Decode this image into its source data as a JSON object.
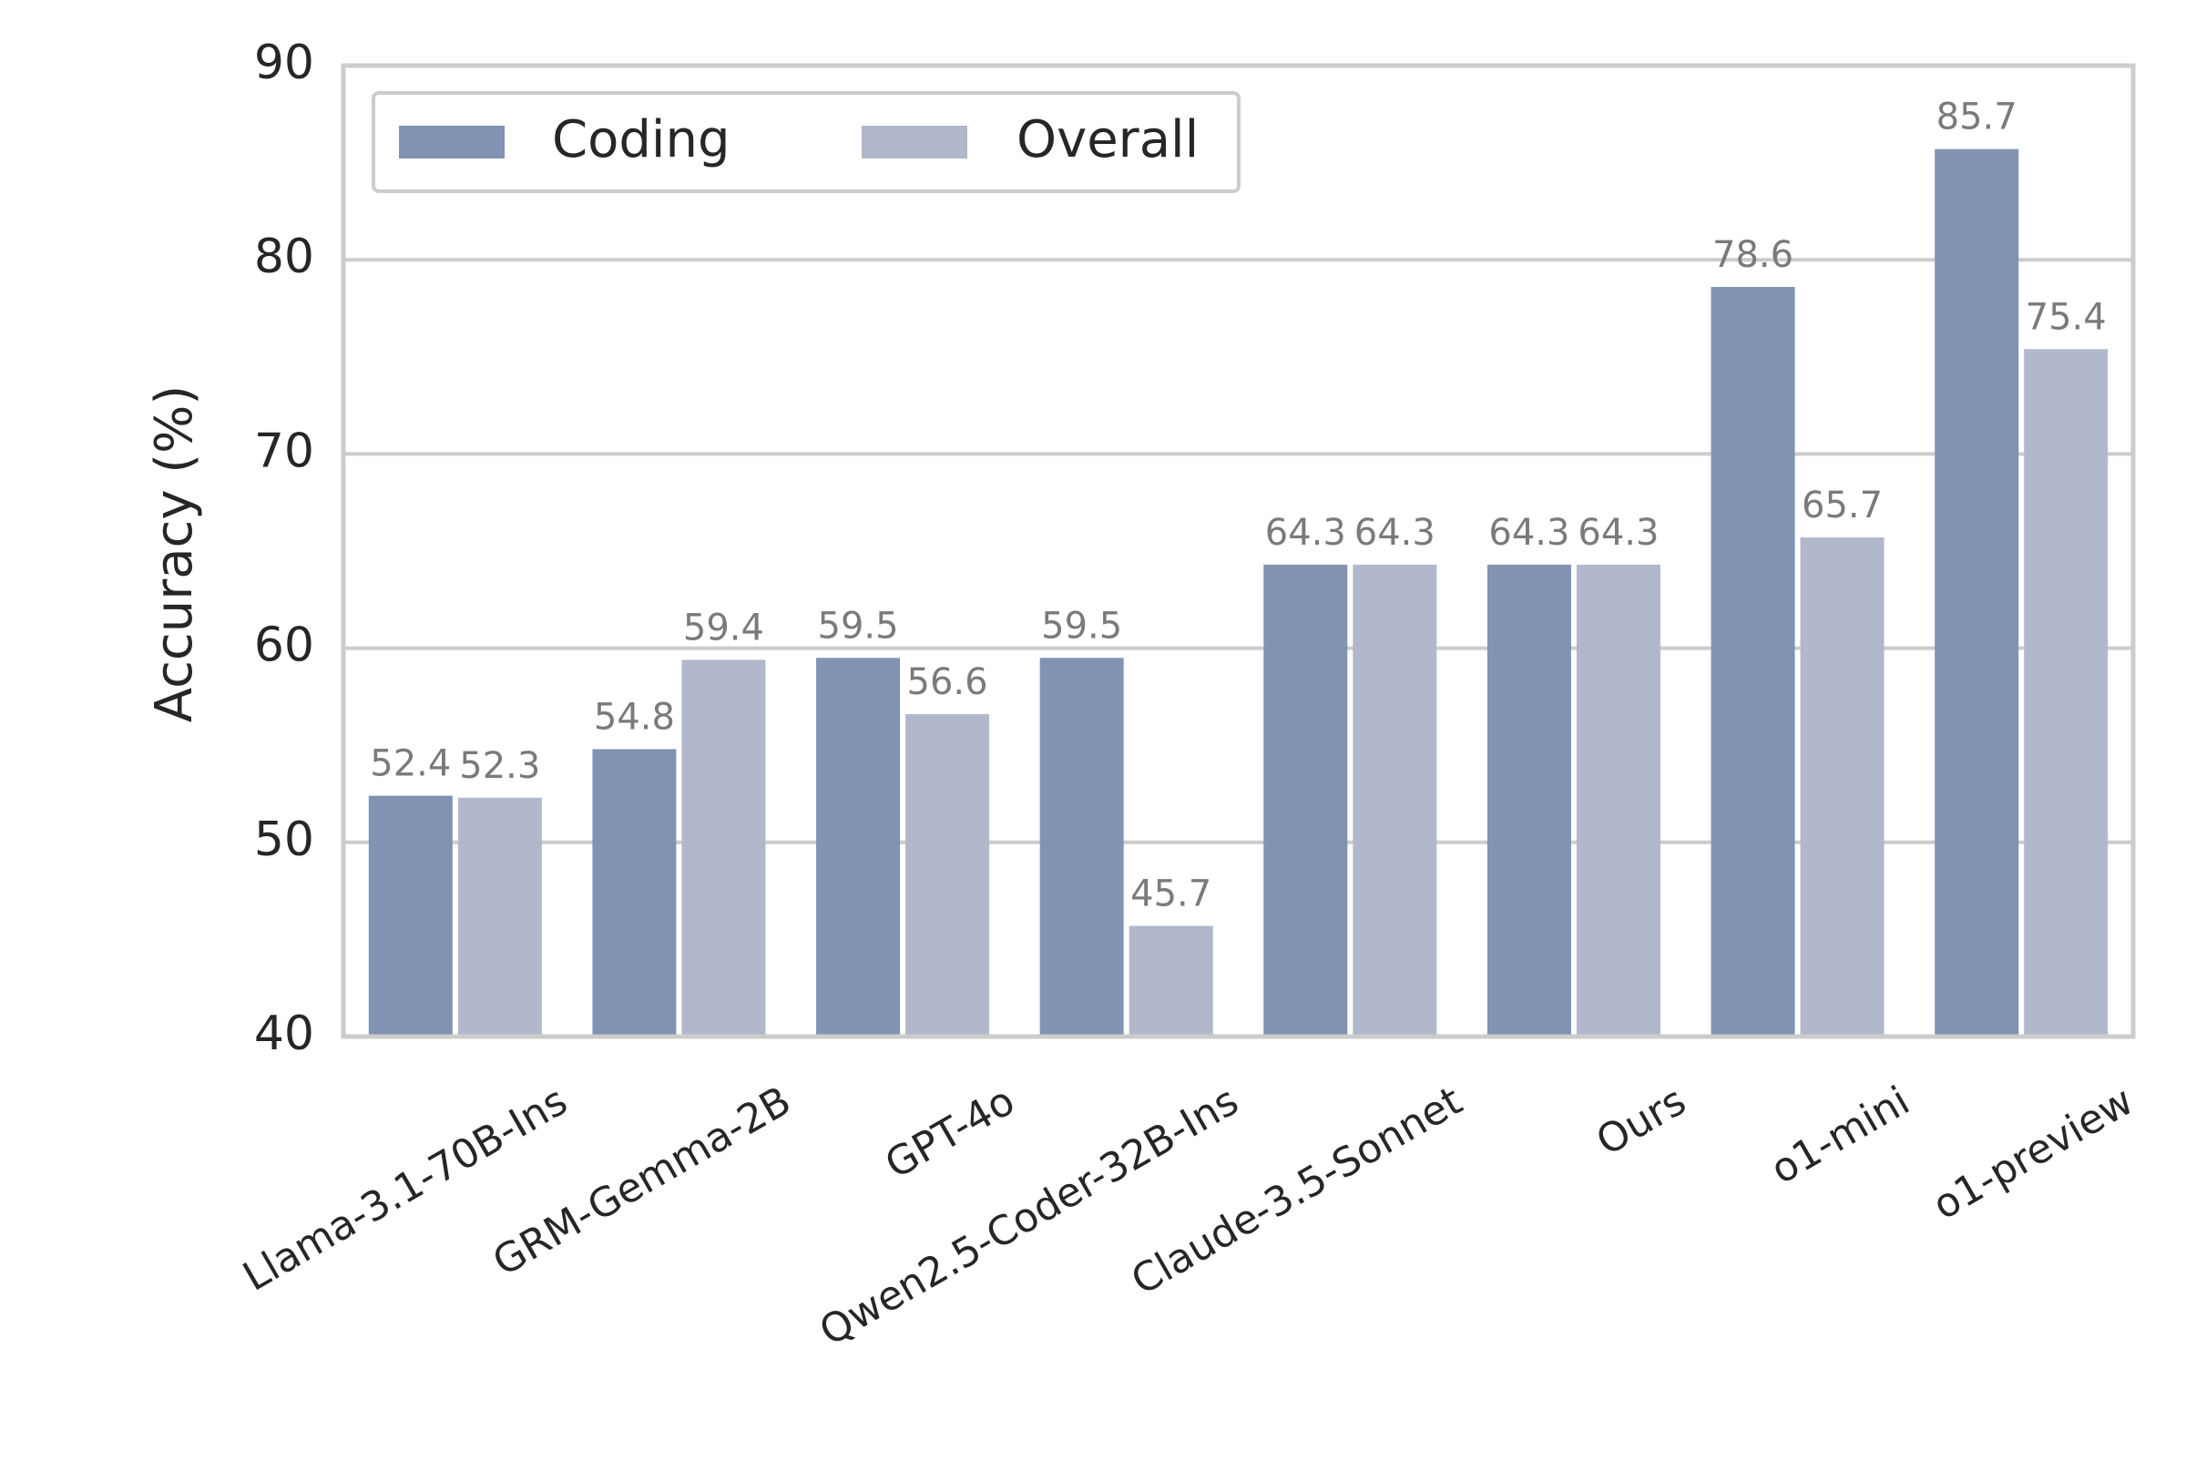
{
  "chart_data": {
    "type": "bar",
    "title": "",
    "xlabel": "",
    "ylabel": "Accuracy (%)",
    "ylim": [
      40,
      90
    ],
    "yticks": [
      40,
      50,
      60,
      70,
      80,
      90
    ],
    "grid": true,
    "legend_position": "top-left",
    "categories": [
      "Llama-3.1-70B-Ins",
      "GRM-Gemma-2B",
      "GPT-4o",
      "Qwen2.5-Coder-32B-Ins",
      "Claude-3.5-Sonnet",
      "Ours",
      "o1-mini",
      "o1-preview"
    ],
    "series": [
      {
        "name": "Coding",
        "color": "#8192b2",
        "values": [
          52.4,
          54.8,
          59.5,
          59.5,
          64.3,
          64.3,
          78.6,
          85.7
        ]
      },
      {
        "name": "Overall",
        "color": "#b1b8cc",
        "values": [
          52.3,
          59.4,
          56.6,
          45.7,
          64.3,
          64.3,
          65.7,
          75.4
        ]
      }
    ],
    "data_labels": {
      "Coding": [
        "52.4",
        "54.8",
        "59.5",
        "59.5",
        "64.3",
        "64.3",
        "78.6",
        "85.7"
      ],
      "Overall": [
        "52.3",
        "59.4",
        "56.6",
        "45.7",
        "64.3",
        "64.3",
        "65.7",
        "75.4"
      ]
    },
    "colors": {
      "grid": "#cccccc",
      "axis": "#cccccc",
      "text": "#262626",
      "data_label": "#7a7a7a"
    }
  }
}
